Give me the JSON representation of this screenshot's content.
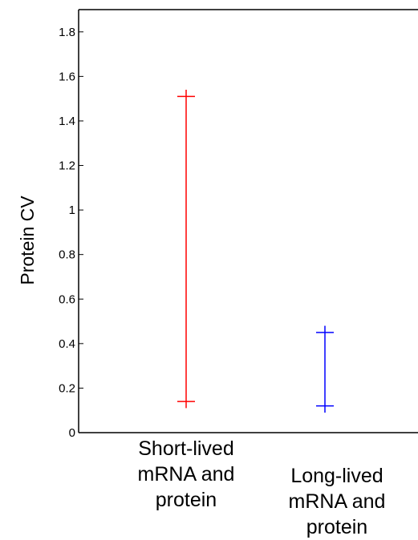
{
  "chart_data": {
    "type": "scatter",
    "subtype": "range-errorbar",
    "ylabel": "Protein CV",
    "ylim": [
      0,
      1.9
    ],
    "yticks": [
      "0",
      "0.2",
      "0.4",
      "0.6",
      "0.8",
      "1",
      "1.2",
      "1.4",
      "1.6",
      "1.8"
    ],
    "categories": [
      "Short-lived\nmRNA and\nprotein",
      "Long-lived\nmRNA and\nprotein"
    ],
    "series": [
      {
        "category": 0,
        "low": 0.14,
        "high": 1.51,
        "whisker_low": 0.11,
        "whisker_high": 1.54,
        "color": "#ff0000"
      },
      {
        "category": 1,
        "low": 0.12,
        "high": 0.45,
        "whisker_low": 0.09,
        "whisker_high": 0.48,
        "color": "#0000ff"
      }
    ],
    "grid": false,
    "legend": "none"
  }
}
